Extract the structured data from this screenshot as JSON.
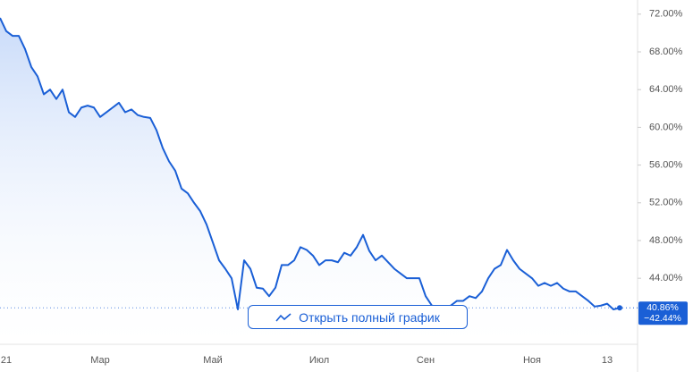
{
  "chart_data": {
    "type": "line",
    "categories": [
      null,
      "21",
      null,
      null,
      null,
      null,
      null,
      null,
      null,
      null,
      null,
      null,
      null,
      null,
      null,
      null,
      "Мар",
      null,
      null,
      null,
      null,
      null,
      null,
      null,
      null,
      null,
      null,
      null,
      null,
      null,
      null,
      null,
      null,
      null,
      "Май",
      null,
      null,
      null,
      null,
      null,
      null,
      null,
      null,
      null,
      null,
      null,
      null,
      null,
      null,
      null,
      null,
      "Июл",
      null,
      null,
      null,
      null,
      null,
      null,
      null,
      null,
      null,
      null,
      null,
      null,
      null,
      null,
      null,
      null,
      "Сен",
      null,
      null,
      null,
      null,
      null,
      null,
      null,
      null,
      null,
      null,
      null,
      null,
      null,
      null,
      null,
      null,
      "Ноя",
      null,
      null,
      null,
      null,
      null,
      null,
      null,
      null,
      null,
      null,
      null,
      "13",
      null,
      null
    ],
    "values": [
      71.6,
      70.2,
      69.7,
      69.7,
      68.3,
      66.4,
      65.4,
      63.5,
      64.0,
      63.0,
      64.0,
      61.6,
      61.1,
      62.1,
      62.3,
      62.1,
      61.1,
      61.6,
      62.1,
      62.6,
      61.6,
      61.9,
      61.3,
      61.1,
      61.0,
      59.7,
      57.8,
      56.4,
      55.4,
      53.5,
      53.0,
      52.0,
      51.1,
      49.7,
      47.8,
      45.9,
      45.0,
      44.0,
      40.7,
      45.9,
      45.0,
      43.0,
      42.9,
      42.1,
      43.0,
      45.4,
      45.4,
      45.9,
      47.3,
      47.0,
      46.4,
      45.4,
      45.9,
      45.9,
      45.7,
      46.7,
      46.4,
      47.3,
      48.6,
      46.9,
      45.9,
      46.4,
      45.7,
      45.0,
      44.5,
      44.0,
      44.0,
      44.0,
      42.1,
      41.1,
      41.0,
      40.7,
      41.1,
      41.6,
      41.6,
      42.1,
      41.9,
      42.6,
      44.0,
      45.0,
      45.4,
      47.0,
      45.9,
      45.0,
      44.5,
      44.0,
      43.2,
      43.5,
      43.2,
      43.5,
      42.9,
      42.6,
      42.6,
      42.1,
      41.6,
      41.0,
      41.1,
      41.3,
      40.7,
      40.86
    ],
    "color": "#1a5fd6",
    "ylim": [
      37,
      73.5
    ],
    "yticks": [
      {
        "value": 44,
        "label": "44.00%"
      },
      {
        "value": 48,
        "label": "48.00%"
      },
      {
        "value": 52,
        "label": "52.00%"
      },
      {
        "value": 56,
        "label": "56.00%"
      },
      {
        "value": 60,
        "label": "60.00%"
      },
      {
        "value": 64,
        "label": "64.00%"
      },
      {
        "value": 68,
        "label": "68.00%"
      },
      {
        "value": 72,
        "label": "72.00%"
      }
    ],
    "last_price": {
      "value": 40.86,
      "label": "40.86%"
    },
    "change_label": "−42.44%",
    "button": "Открыть полный график"
  }
}
